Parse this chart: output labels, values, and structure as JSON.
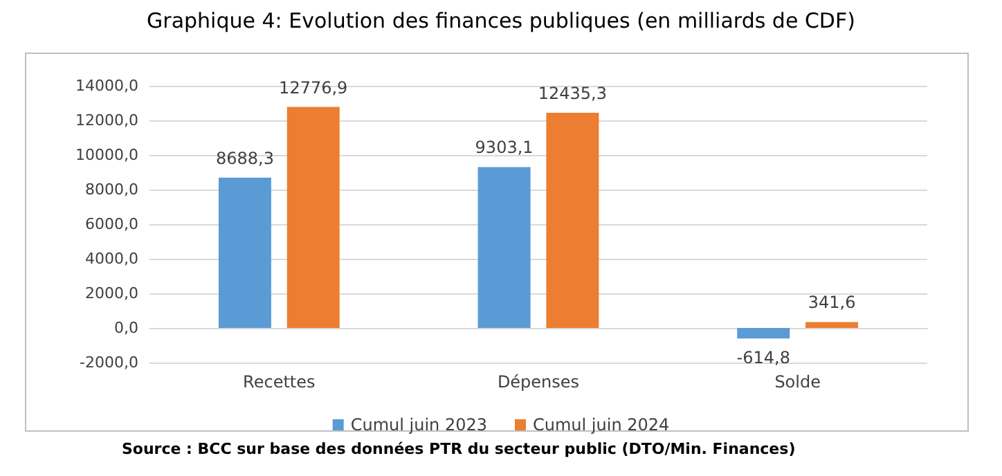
{
  "chart_data": {
    "type": "bar",
    "title": "Graphique 4: Evolution des finances publiques (en milliards de CDF)",
    "categories": [
      "Recettes",
      "Dépenses",
      "Solde"
    ],
    "series": [
      {
        "name": "Cumul juin 2023",
        "color": "#5b9bd5",
        "values": [
          8688.3,
          9303.1,
          -614.8
        ],
        "value_labels": [
          "8688,3",
          "9303,1",
          "-614,8"
        ]
      },
      {
        "name": "Cumul juin 2024",
        "color": "#ed7d31",
        "values": [
          12776.9,
          12435.3,
          341.6
        ],
        "value_labels": [
          "12776,9",
          "12435,3",
          "341,6"
        ]
      }
    ],
    "ylim": [
      -2000,
      14000
    ],
    "yticks": [
      {
        "value": -2000,
        "label": "-2000,0"
      },
      {
        "value": 0,
        "label": "0,0"
      },
      {
        "value": 2000,
        "label": "2000,0"
      },
      {
        "value": 4000,
        "label": "4000,0"
      },
      {
        "value": 6000,
        "label": "6000,0"
      },
      {
        "value": 8000,
        "label": "8000,0"
      },
      {
        "value": 10000,
        "label": "10000,0"
      },
      {
        "value": 12000,
        "label": "12000,0"
      },
      {
        "value": 14000,
        "label": "14000,0"
      }
    ],
    "grid": "y",
    "legend": "bottom",
    "annotations": [
      "Source : BCC sur base des données PTR du secteur public (DTO/Min. Finances)"
    ]
  }
}
